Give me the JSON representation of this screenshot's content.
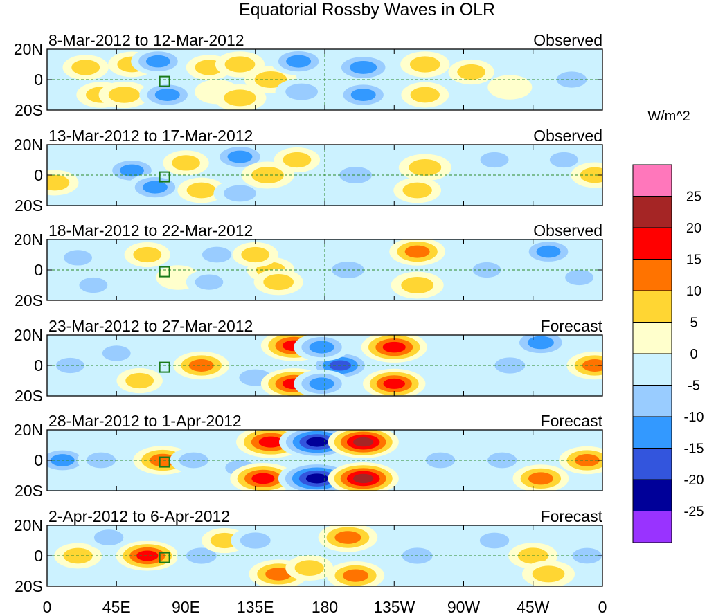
{
  "chart_data": {
    "type": "heatmap",
    "title": "Equatorial Rossby Waves in OLR",
    "units": "W/m^2",
    "x_ticks": [
      "0",
      "45E",
      "90E",
      "135E",
      "180",
      "135W",
      "90W",
      "45W",
      "0"
    ],
    "x_tick_values": [
      0,
      45,
      90,
      135,
      180,
      225,
      270,
      315,
      360
    ],
    "y_ticks": [
      "20N",
      "0",
      "20S"
    ],
    "y_tick_values": [
      20,
      0,
      -20
    ],
    "xlim": [
      0,
      360
    ],
    "ylim": [
      -20,
      20
    ],
    "colorbar": {
      "levels": [
        "25",
        "20",
        "15",
        "10",
        "5",
        "0",
        "-5",
        "-10",
        "-15",
        "-20",
        "-25"
      ],
      "colors": [
        "#ff77bb",
        "#a52525",
        "#ff0000",
        "#ff7300",
        "#ffd633",
        "#ffffcc",
        "#ccf2ff",
        "#99ccff",
        "#3399ff",
        "#3355dd",
        "#000099",
        "#9933ff"
      ]
    },
    "panels": [
      {
        "date": "8-Mar-2012 to 12-Mar-2012",
        "status": "Observed",
        "features": [
          {
            "lon": 25,
            "lat": 8,
            "value": 6
          },
          {
            "lon": 35,
            "lat": -10,
            "value": 8
          },
          {
            "lon": 50,
            "lat": -10,
            "value": 9
          },
          {
            "lon": 55,
            "lat": 10,
            "value": 7
          },
          {
            "lon": 72,
            "lat": 12,
            "value": -11
          },
          {
            "lon": 78,
            "lat": -10,
            "value": -12
          },
          {
            "lon": 105,
            "lat": 8,
            "value": 6
          },
          {
            "lon": 110,
            "lat": -8,
            "value": 5
          },
          {
            "lon": 125,
            "lat": 10,
            "value": 8
          },
          {
            "lon": 125,
            "lat": -12,
            "value": 10
          },
          {
            "lon": 145,
            "lat": 0,
            "value": 10
          },
          {
            "lon": 163,
            "lat": 12,
            "value": -12
          },
          {
            "lon": 165,
            "lat": -8,
            "value": -10
          },
          {
            "lon": 205,
            "lat": 8,
            "value": -15
          },
          {
            "lon": 205,
            "lat": -10,
            "value": -12
          },
          {
            "lon": 245,
            "lat": 10,
            "value": 8
          },
          {
            "lon": 245,
            "lat": -10,
            "value": 7
          },
          {
            "lon": 275,
            "lat": 5,
            "value": 6
          },
          {
            "lon": 300,
            "lat": -5,
            "value": 5
          },
          {
            "lon": 340,
            "lat": 0,
            "value": -8
          }
        ]
      },
      {
        "date": "13-Mar-2012 to 17-Mar-2012",
        "status": "Observed",
        "features": [
          {
            "lon": 5,
            "lat": -5,
            "value": 7
          },
          {
            "lon": 55,
            "lat": 3,
            "value": -11
          },
          {
            "lon": 70,
            "lat": -8,
            "value": -12
          },
          {
            "lon": 90,
            "lat": 8,
            "value": 6
          },
          {
            "lon": 100,
            "lat": -10,
            "value": 7
          },
          {
            "lon": 125,
            "lat": 12,
            "value": -12
          },
          {
            "lon": 125,
            "lat": -12,
            "value": -10
          },
          {
            "lon": 143,
            "lat": 0,
            "value": 10
          },
          {
            "lon": 162,
            "lat": 10,
            "value": 6
          },
          {
            "lon": 200,
            "lat": 0,
            "value": -10
          },
          {
            "lon": 245,
            "lat": 5,
            "value": 10
          },
          {
            "lon": 240,
            "lat": -10,
            "value": 7
          },
          {
            "lon": 290,
            "lat": 10,
            "value": -6
          },
          {
            "lon": 335,
            "lat": 10,
            "value": -6
          },
          {
            "lon": 355,
            "lat": 0,
            "value": 7
          }
        ]
      },
      {
        "date": "18-Mar-2012 to 22-Mar-2012",
        "status": "Observed",
        "features": [
          {
            "lon": 20,
            "lat": 8,
            "value": -6
          },
          {
            "lon": 30,
            "lat": -10,
            "value": -6
          },
          {
            "lon": 65,
            "lat": 10,
            "value": 6
          },
          {
            "lon": 85,
            "lat": -5,
            "value": 5
          },
          {
            "lon": 110,
            "lat": 10,
            "value": -7
          },
          {
            "lon": 105,
            "lat": -8,
            "value": -6
          },
          {
            "lon": 145,
            "lat": 0,
            "value": 7
          },
          {
            "lon": 135,
            "lat": 10,
            "value": 6
          },
          {
            "lon": 150,
            "lat": -8,
            "value": 8
          },
          {
            "lon": 195,
            "lat": 0,
            "value": -10
          },
          {
            "lon": 240,
            "lat": 12,
            "value": 12
          },
          {
            "lon": 240,
            "lat": -10,
            "value": 10
          },
          {
            "lon": 285,
            "lat": 0,
            "value": -6
          },
          {
            "lon": 325,
            "lat": 12,
            "value": -11
          },
          {
            "lon": 345,
            "lat": -5,
            "value": -6
          }
        ]
      },
      {
        "date": "23-Mar-2012 to 27-Mar-2012",
        "status": "Forecast",
        "features": [
          {
            "lon": 15,
            "lat": 0,
            "value": -6
          },
          {
            "lon": 45,
            "lat": 8,
            "value": -6
          },
          {
            "lon": 60,
            "lat": -10,
            "value": 6
          },
          {
            "lon": 100,
            "lat": 0,
            "value": 12
          },
          {
            "lon": 135,
            "lat": -8,
            "value": -10
          },
          {
            "lon": 160,
            "lat": 13,
            "value": 18
          },
          {
            "lon": 160,
            "lat": -12,
            "value": 18
          },
          {
            "lon": 190,
            "lat": 0,
            "value": -16
          },
          {
            "lon": 178,
            "lat": 12,
            "value": -12
          },
          {
            "lon": 178,
            "lat": -12,
            "value": -12
          },
          {
            "lon": 225,
            "lat": 12,
            "value": 18
          },
          {
            "lon": 225,
            "lat": -12,
            "value": 16
          },
          {
            "lon": 300,
            "lat": 0,
            "value": -8
          },
          {
            "lon": 320,
            "lat": 15,
            "value": -14
          },
          {
            "lon": 355,
            "lat": 0,
            "value": 12
          }
        ]
      },
      {
        "date": "28-Mar-2012 to 1-Apr-2012",
        "status": "Forecast",
        "features": [
          {
            "lon": 10,
            "lat": 0,
            "value": -11
          },
          {
            "lon": 35,
            "lat": 0,
            "value": -7
          },
          {
            "lon": 75,
            "lat": 0,
            "value": 14
          },
          {
            "lon": 95,
            "lat": 0,
            "value": -7
          },
          {
            "lon": 125,
            "lat": -5,
            "value": -7
          },
          {
            "lon": 145,
            "lat": 12,
            "value": 20
          },
          {
            "lon": 140,
            "lat": -12,
            "value": 18
          },
          {
            "lon": 175,
            "lat": 12,
            "value": -24
          },
          {
            "lon": 175,
            "lat": -12,
            "value": -25
          },
          {
            "lon": 205,
            "lat": 12,
            "value": 21
          },
          {
            "lon": 205,
            "lat": -12,
            "value": 21
          },
          {
            "lon": 255,
            "lat": 0,
            "value": -7
          },
          {
            "lon": 295,
            "lat": 0,
            "value": -7
          },
          {
            "lon": 320,
            "lat": -12,
            "value": 12
          },
          {
            "lon": 350,
            "lat": 0,
            "value": 12
          }
        ]
      },
      {
        "date": "2-Apr-2012 to 6-Apr-2012",
        "status": "Forecast",
        "features": [
          {
            "lon": 20,
            "lat": 0,
            "value": 7
          },
          {
            "lon": 40,
            "lat": 12,
            "value": -7
          },
          {
            "lon": 65,
            "lat": 0,
            "value": 16
          },
          {
            "lon": 100,
            "lat": 0,
            "value": -8
          },
          {
            "lon": 115,
            "lat": 10,
            "value": 6
          },
          {
            "lon": 135,
            "lat": 10,
            "value": -8
          },
          {
            "lon": 150,
            "lat": -12,
            "value": 14
          },
          {
            "lon": 170,
            "lat": -8,
            "value": 7
          },
          {
            "lon": 195,
            "lat": 12,
            "value": 14
          },
          {
            "lon": 200,
            "lat": -13,
            "value": 13
          },
          {
            "lon": 240,
            "lat": 0,
            "value": -8
          },
          {
            "lon": 290,
            "lat": 10,
            "value": -7
          },
          {
            "lon": 315,
            "lat": 0,
            "value": 8
          },
          {
            "lon": 325,
            "lat": -12,
            "value": 10
          },
          {
            "lon": 350,
            "lat": 0,
            "value": -7
          }
        ]
      }
    ]
  }
}
